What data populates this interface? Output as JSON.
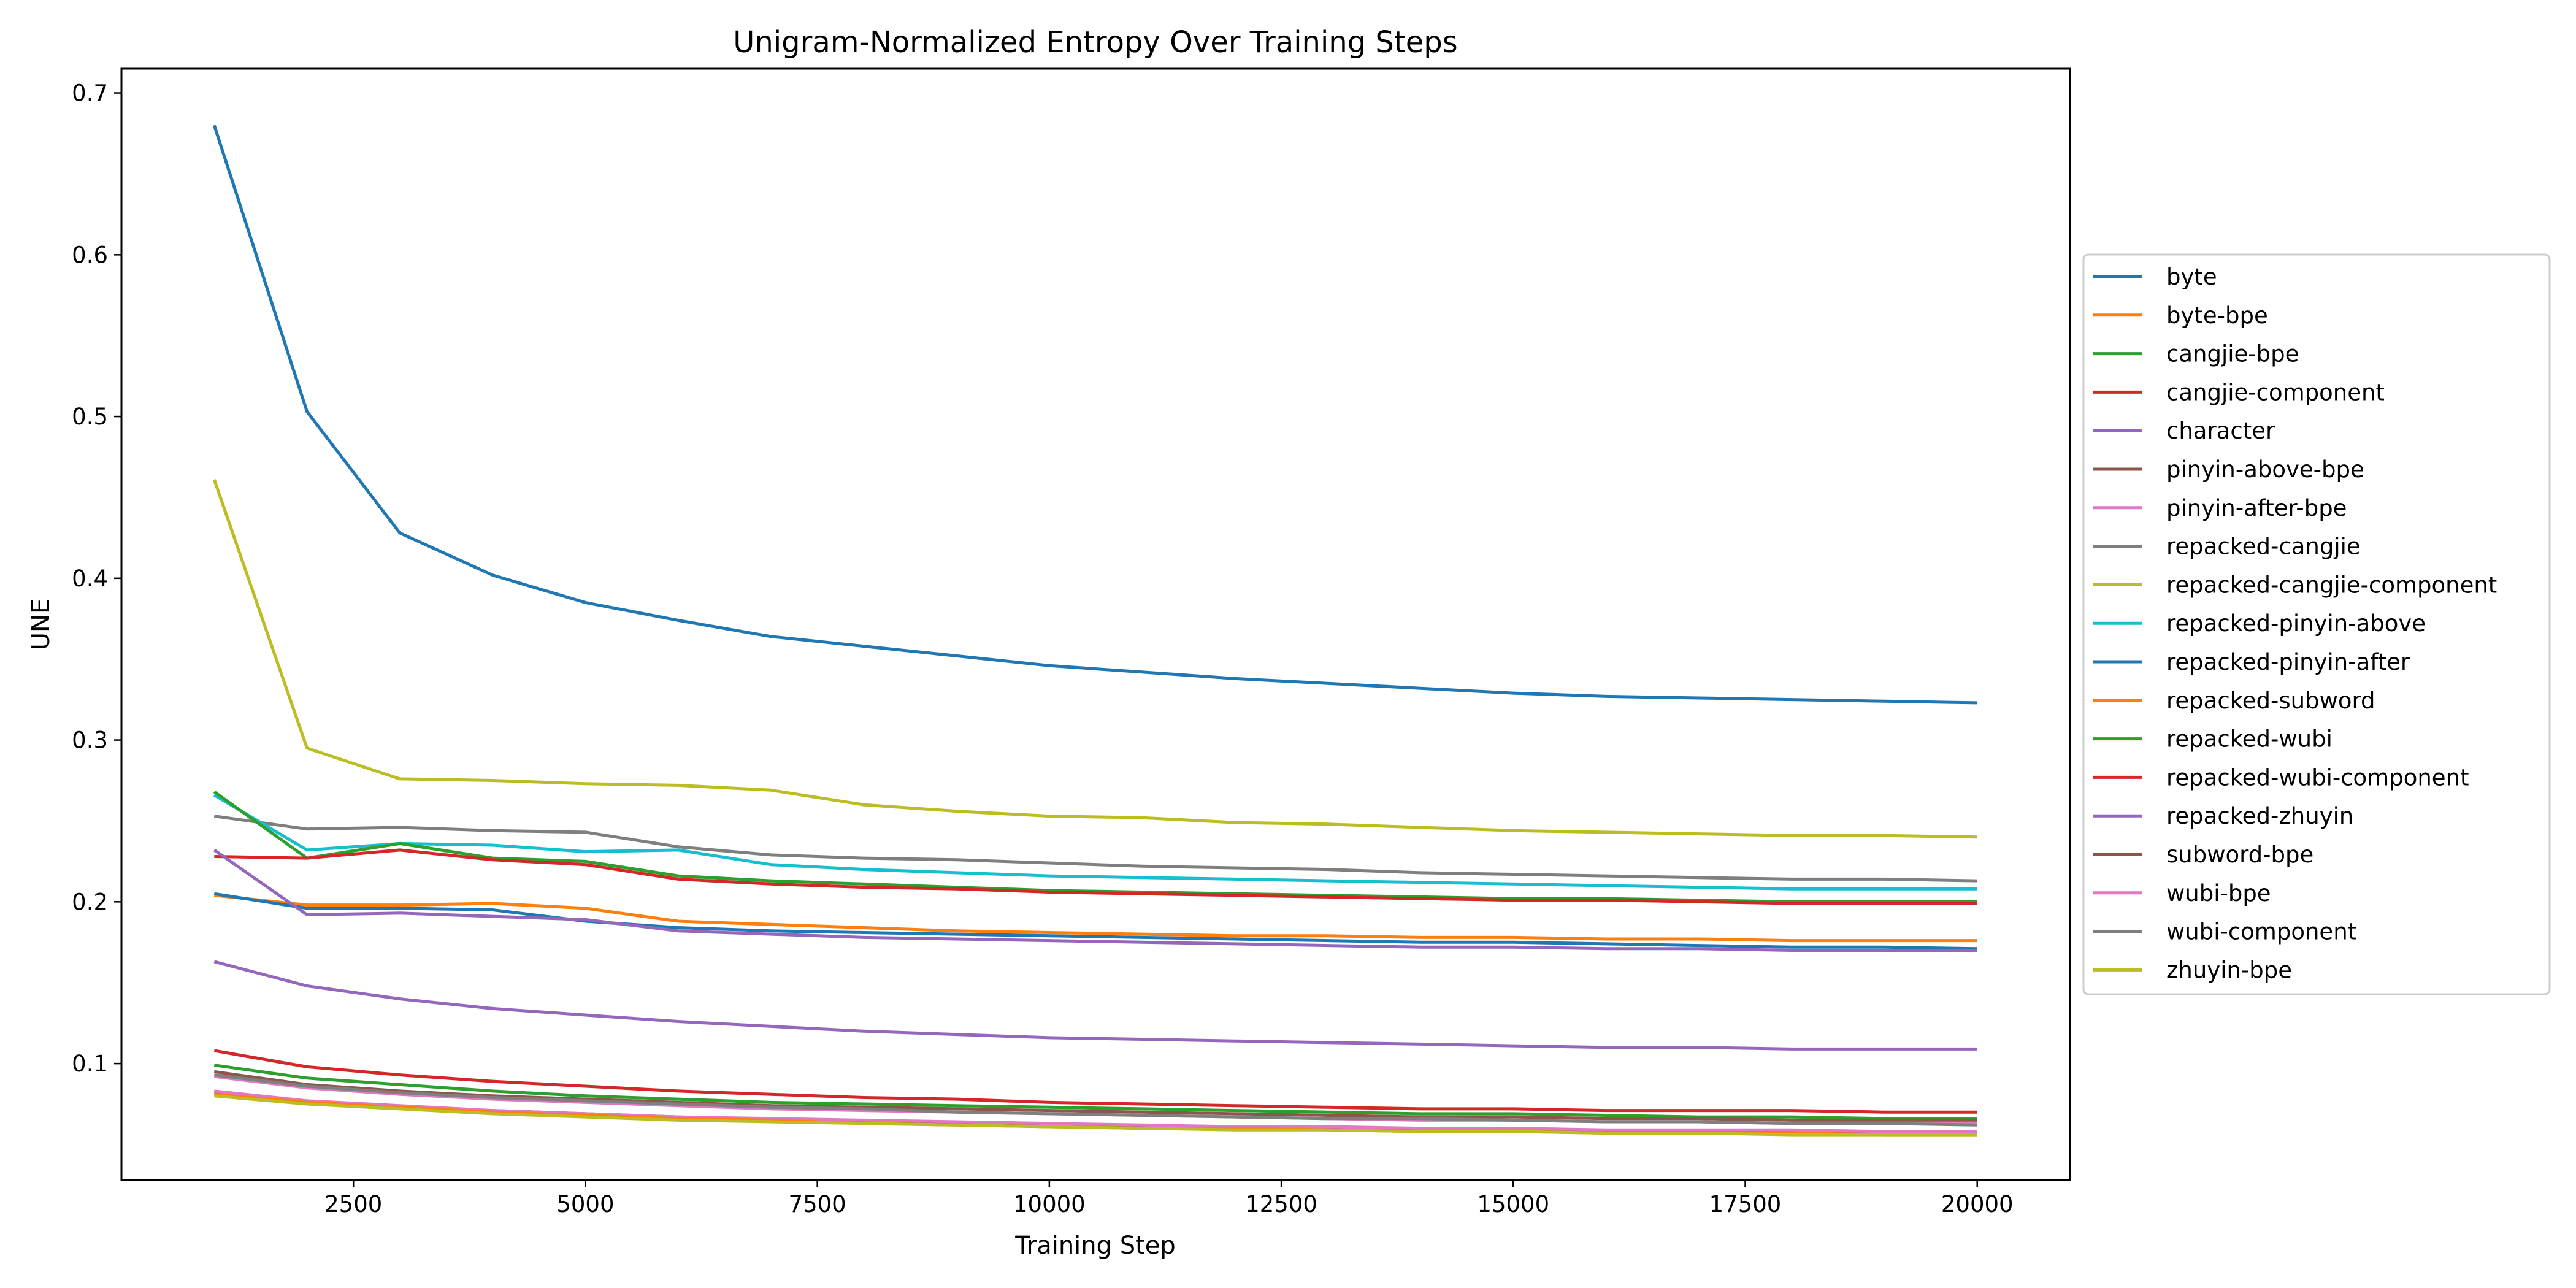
{
  "chart_data": {
    "type": "line",
    "title": "Unigram-Normalized Entropy Over Training Steps",
    "xlabel": "Training Step",
    "ylabel": "UNE",
    "xlim": [
      0,
      21000
    ],
    "ylim": [
      0.028,
      0.715
    ],
    "xticks": [
      2500,
      5000,
      7500,
      10000,
      12500,
      15000,
      17500,
      20000
    ],
    "yticks": [
      0.1,
      0.2,
      0.3,
      0.4,
      0.5,
      0.6,
      0.7
    ],
    "grid": false,
    "legend_position": "right-outside",
    "x": [
      1000,
      2000,
      3000,
      4000,
      5000,
      6000,
      7000,
      8000,
      9000,
      10000,
      11000,
      12000,
      13000,
      14000,
      15000,
      16000,
      17000,
      18000,
      19000,
      20000
    ],
    "series": [
      {
        "name": "byte",
        "color": "#1f77b4",
        "values": [
          0.68,
          0.503,
          0.428,
          0.402,
          0.385,
          0.374,
          0.364,
          0.358,
          0.352,
          0.346,
          0.342,
          0.338,
          0.335,
          0.332,
          0.329,
          0.327,
          0.326,
          0.325,
          0.324,
          0.323
        ]
      },
      {
        "name": "byte-bpe",
        "color": "#ff7f0e",
        "values": [
          0.204,
          0.198,
          0.198,
          0.199,
          0.196,
          0.188,
          0.186,
          0.184,
          0.182,
          0.181,
          0.18,
          0.179,
          0.179,
          0.178,
          0.178,
          0.177,
          0.177,
          0.176,
          0.176,
          0.176
        ]
      },
      {
        "name": "cangjie-bpe",
        "color": "#2ca02c",
        "values": [
          0.099,
          0.091,
          0.087,
          0.083,
          0.08,
          0.078,
          0.076,
          0.075,
          0.074,
          0.073,
          0.072,
          0.071,
          0.07,
          0.069,
          0.069,
          0.068,
          0.067,
          0.067,
          0.066,
          0.066
        ]
      },
      {
        "name": "cangjie-component",
        "color": "#d62728",
        "values": [
          0.108,
          0.098,
          0.093,
          0.089,
          0.086,
          0.083,
          0.081,
          0.079,
          0.078,
          0.076,
          0.075,
          0.074,
          0.073,
          0.072,
          0.072,
          0.071,
          0.071,
          0.071,
          0.07,
          0.07
        ]
      },
      {
        "name": "character",
        "color": "#9467bd",
        "values": [
          0.163,
          0.148,
          0.14,
          0.134,
          0.13,
          0.126,
          0.123,
          0.12,
          0.118,
          0.116,
          0.115,
          0.114,
          0.113,
          0.112,
          0.111,
          0.11,
          0.11,
          0.109,
          0.109,
          0.109
        ]
      },
      {
        "name": "pinyin-above-bpe",
        "color": "#8c564b",
        "values": [
          0.082,
          0.076,
          0.073,
          0.071,
          0.069,
          0.067,
          0.065,
          0.064,
          0.063,
          0.062,
          0.061,
          0.06,
          0.06,
          0.059,
          0.059,
          0.058,
          0.058,
          0.058,
          0.057,
          0.057
        ]
      },
      {
        "name": "pinyin-after-bpe",
        "color": "#e377c2",
        "values": [
          0.083,
          0.077,
          0.074,
          0.071,
          0.069,
          0.067,
          0.066,
          0.065,
          0.064,
          0.063,
          0.062,
          0.061,
          0.061,
          0.06,
          0.06,
          0.059,
          0.059,
          0.059,
          0.058,
          0.058
        ]
      },
      {
        "name": "repacked-cangjie",
        "color": "#7f7f7f",
        "values": [
          0.253,
          0.245,
          0.246,
          0.244,
          0.243,
          0.234,
          0.229,
          0.227,
          0.226,
          0.224,
          0.222,
          0.221,
          0.22,
          0.218,
          0.217,
          0.216,
          0.215,
          0.214,
          0.214,
          0.213
        ]
      },
      {
        "name": "repacked-cangjie-component",
        "color": "#bcbd22",
        "values": [
          0.461,
          0.295,
          0.276,
          0.275,
          0.273,
          0.272,
          0.269,
          0.26,
          0.256,
          0.253,
          0.252,
          0.249,
          0.248,
          0.246,
          0.244,
          0.243,
          0.242,
          0.241,
          0.241,
          0.24
        ]
      },
      {
        "name": "repacked-pinyin-above",
        "color": "#17becf",
        "values": [
          0.266,
          0.232,
          0.236,
          0.235,
          0.231,
          0.232,
          0.223,
          0.22,
          0.218,
          0.216,
          0.215,
          0.214,
          0.213,
          0.212,
          0.211,
          0.21,
          0.209,
          0.208,
          0.208,
          0.208
        ]
      },
      {
        "name": "repacked-pinyin-after",
        "color": "#1f77b4",
        "values": [
          0.205,
          0.196,
          0.196,
          0.195,
          0.188,
          0.184,
          0.182,
          0.181,
          0.18,
          0.179,
          0.178,
          0.177,
          0.176,
          0.175,
          0.175,
          0.174,
          0.173,
          0.172,
          0.172,
          0.171
        ]
      },
      {
        "name": "repacked-subword",
        "color": "#ff7f0e",
        "values": [
          0.081,
          0.076,
          0.073,
          0.07,
          0.068,
          0.066,
          0.065,
          0.063,
          0.062,
          0.061,
          0.06,
          0.06,
          0.059,
          0.058,
          0.058,
          0.057,
          0.057,
          0.057,
          0.056,
          0.056
        ]
      },
      {
        "name": "repacked-wubi",
        "color": "#2ca02c",
        "values": [
          0.268,
          0.227,
          0.236,
          0.227,
          0.225,
          0.216,
          0.213,
          0.211,
          0.209,
          0.207,
          0.206,
          0.205,
          0.204,
          0.203,
          0.202,
          0.202,
          0.201,
          0.2,
          0.2,
          0.2
        ]
      },
      {
        "name": "repacked-wubi-component",
        "color": "#d62728",
        "values": [
          0.228,
          0.227,
          0.232,
          0.226,
          0.223,
          0.214,
          0.211,
          0.209,
          0.208,
          0.206,
          0.205,
          0.204,
          0.203,
          0.202,
          0.201,
          0.201,
          0.2,
          0.199,
          0.199,
          0.199
        ]
      },
      {
        "name": "repacked-zhuyin",
        "color": "#9467bd",
        "values": [
          0.232,
          0.192,
          0.193,
          0.191,
          0.189,
          0.182,
          0.18,
          0.178,
          0.177,
          0.176,
          0.175,
          0.174,
          0.173,
          0.172,
          0.172,
          0.171,
          0.171,
          0.17,
          0.17,
          0.17
        ]
      },
      {
        "name": "subword-bpe",
        "color": "#8c564b",
        "values": [
          0.095,
          0.087,
          0.083,
          0.08,
          0.078,
          0.076,
          0.074,
          0.073,
          0.072,
          0.071,
          0.07,
          0.069,
          0.068,
          0.067,
          0.067,
          0.066,
          0.066,
          0.065,
          0.065,
          0.065
        ]
      },
      {
        "name": "wubi-bpe",
        "color": "#e377c2",
        "values": [
          0.092,
          0.085,
          0.081,
          0.078,
          0.076,
          0.074,
          0.072,
          0.071,
          0.07,
          0.069,
          0.068,
          0.067,
          0.066,
          0.065,
          0.065,
          0.064,
          0.064,
          0.063,
          0.063,
          0.063
        ]
      },
      {
        "name": "wubi-component",
        "color": "#7f7f7f",
        "values": [
          0.093,
          0.086,
          0.082,
          0.079,
          0.077,
          0.075,
          0.073,
          0.072,
          0.07,
          0.069,
          0.068,
          0.067,
          0.066,
          0.066,
          0.065,
          0.064,
          0.064,
          0.063,
          0.063,
          0.062
        ]
      },
      {
        "name": "zhuyin-bpe",
        "color": "#bcbd22",
        "values": [
          0.08,
          0.075,
          0.072,
          0.069,
          0.067,
          0.065,
          0.064,
          0.063,
          0.062,
          0.061,
          0.06,
          0.059,
          0.059,
          0.058,
          0.058,
          0.057,
          0.057,
          0.056,
          0.056,
          0.056
        ]
      }
    ]
  }
}
